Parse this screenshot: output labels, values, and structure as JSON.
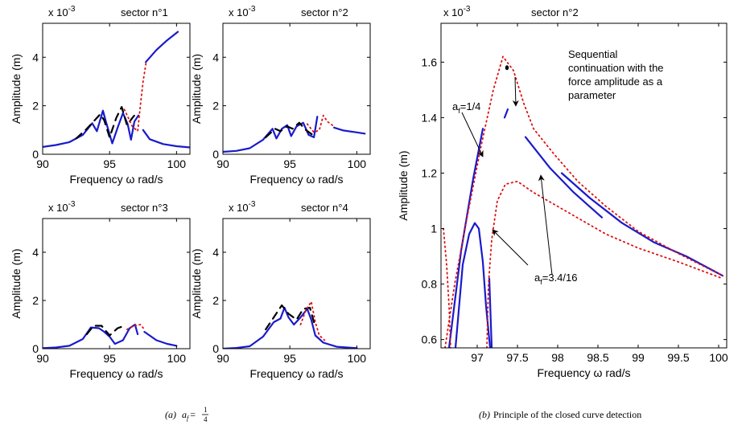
{
  "chart_data": [
    {
      "type": "line",
      "id": "p1",
      "title": "sector n°1",
      "xlabel": "Frequency ω rad/s",
      "ylabel": "Amplitude (m)",
      "exponent_label": "x 10",
      "exponent_power": "-3",
      "xlim": [
        90,
        101
      ],
      "ylim": [
        0,
        5.4
      ],
      "x_ticks": [
        90,
        95,
        100
      ],
      "y_ticks": [
        0,
        2,
        4
      ],
      "series": [
        {
          "style": "blue-solid",
          "points": [
            [
              90,
              0.3
            ],
            [
              91,
              0.38
            ],
            [
              92,
              0.5
            ],
            [
              93,
              0.8
            ],
            [
              93.7,
              1.28
            ],
            [
              94.05,
              0.95
            ],
            [
              94.5,
              1.8
            ],
            [
              94.75,
              1.3
            ],
            [
              95.2,
              0.45
            ],
            [
              95.6,
              1.1
            ],
            [
              96,
              1.7
            ],
            [
              96.35,
              1.25
            ],
            [
              96.6,
              0.6
            ],
            [
              96.85,
              1.35
            ],
            [
              97.15,
              1.6
            ]
          ]
        },
        {
          "style": "blue-solid",
          "points": [
            [
              97.7,
              3.8
            ],
            [
              98.5,
              4.3
            ],
            [
              99.3,
              4.7
            ],
            [
              100.1,
              5.05
            ]
          ]
        },
        {
          "style": "blue-solid",
          "points": [
            [
              97.5,
              1.0
            ],
            [
              98,
              0.62
            ],
            [
              99,
              0.42
            ],
            [
              100,
              0.33
            ],
            [
              101,
              0.28
            ]
          ]
        },
        {
          "style": "black-dash",
          "points": [
            [
              92.5,
              0.65
            ],
            [
              93.3,
              1.05
            ],
            [
              93.8,
              1.35
            ],
            [
              94.3,
              1.65
            ],
            [
              94.6,
              1.4
            ],
            [
              95.0,
              0.7
            ],
            [
              95.5,
              1.5
            ],
            [
              95.9,
              1.95
            ],
            [
              96.3,
              1.2
            ],
            [
              96.7,
              1.5
            ],
            [
              97.0,
              1.7
            ]
          ]
        },
        {
          "style": "red-dot",
          "points": [
            [
              96.1,
              1.85
            ],
            [
              96.7,
              1.15
            ],
            [
              97.1,
              0.95
            ],
            [
              97.3,
              2.0
            ],
            [
              97.5,
              3.0
            ],
            [
              97.75,
              3.85
            ]
          ]
        }
      ]
    },
    {
      "type": "line",
      "id": "p2",
      "title": "sector n°2",
      "xlabel": "Frequency ω rad/s",
      "ylabel": "Amplitude (m)",
      "exponent_label": "x 10",
      "exponent_power": "-3",
      "xlim": [
        90,
        101
      ],
      "ylim": [
        0,
        5.4
      ],
      "x_ticks": [
        90,
        95,
        100
      ],
      "y_ticks": [
        0,
        2,
        4
      ],
      "series": [
        {
          "style": "blue-solid",
          "points": [
            [
              90,
              0.1
            ],
            [
              91,
              0.14
            ],
            [
              92,
              0.25
            ],
            [
              93,
              0.6
            ],
            [
              93.7,
              1.05
            ],
            [
              94,
              0.65
            ],
            [
              94.4,
              1.05
            ],
            [
              94.8,
              1.2
            ],
            [
              95.1,
              0.75
            ],
            [
              95.5,
              1.15
            ],
            [
              96,
              1.3
            ],
            [
              96.4,
              0.8
            ],
            [
              96.8,
              0.7
            ],
            [
              97.05,
              1.55
            ]
          ]
        },
        {
          "style": "blue-solid",
          "points": [
            [
              98.3,
              1.1
            ],
            [
              99,
              0.98
            ],
            [
              100,
              0.9
            ],
            [
              100.6,
              0.85
            ]
          ]
        },
        {
          "style": "black-dash",
          "points": [
            [
              93.2,
              0.7
            ],
            [
              93.9,
              1.05
            ],
            [
              94.3,
              0.95
            ],
            [
              94.8,
              1.15
            ],
            [
              95.2,
              1.05
            ],
            [
              95.7,
              1.3
            ],
            [
              96.2,
              1.0
            ],
            [
              96.7,
              0.8
            ]
          ]
        },
        {
          "style": "red-dot",
          "points": [
            [
              96.3,
              1.25
            ],
            [
              96.8,
              0.9
            ],
            [
              97.2,
              1.0
            ],
            [
              97.5,
              1.6
            ],
            [
              97.8,
              1.35
            ],
            [
              98.3,
              1.15
            ]
          ]
        }
      ]
    },
    {
      "type": "line",
      "id": "p3",
      "title": "sector n°3",
      "xlabel": "Frequency ω rad/s",
      "ylabel": "Amplitude (m)",
      "exponent_label": "x 10",
      "exponent_power": "-3",
      "xlim": [
        90,
        101
      ],
      "ylim": [
        0,
        5.4
      ],
      "x_ticks": [
        90,
        95,
        100
      ],
      "y_ticks": [
        0,
        2,
        4
      ],
      "series": [
        {
          "style": "blue-solid",
          "points": [
            [
              90,
              0.02
            ],
            [
              91,
              0.05
            ],
            [
              92,
              0.12
            ],
            [
              93,
              0.4
            ],
            [
              93.6,
              0.88
            ],
            [
              94.2,
              0.85
            ],
            [
              94.6,
              0.7
            ],
            [
              95.0,
              0.5
            ],
            [
              95.4,
              0.2
            ],
            [
              96,
              0.35
            ],
            [
              96.5,
              0.85
            ],
            [
              96.9,
              1.0
            ],
            [
              97.1,
              0.6
            ]
          ]
        },
        {
          "style": "blue-solid",
          "points": [
            [
              97.6,
              0.7
            ],
            [
              98.5,
              0.35
            ],
            [
              99.3,
              0.2
            ],
            [
              100,
              0.12
            ]
          ]
        },
        {
          "style": "black-dash",
          "points": [
            [
              93.3,
              0.6
            ],
            [
              93.8,
              0.95
            ],
            [
              94.4,
              0.95
            ],
            [
              95.0,
              0.55
            ],
            [
              95.6,
              0.85
            ],
            [
              96.1,
              0.95
            ]
          ]
        },
        {
          "style": "red-dot",
          "points": [
            [
              96.3,
              0.8
            ],
            [
              96.8,
              0.95
            ],
            [
              97.3,
              1.0
            ],
            [
              97.6,
              0.8
            ]
          ]
        }
      ]
    },
    {
      "type": "line",
      "id": "p4",
      "title": "sector n°4",
      "xlabel": "Frequency ω rad/s",
      "ylabel": "Amplitude (m)",
      "exponent_label": "x 10",
      "exponent_power": "-3",
      "xlim": [
        90,
        101
      ],
      "ylim": [
        0,
        5.4
      ],
      "x_ticks": [
        90,
        95,
        100
      ],
      "y_ticks": [
        0,
        2,
        4
      ],
      "series": [
        {
          "style": "blue-solid",
          "points": [
            [
              90,
              0.0
            ],
            [
              91,
              0.03
            ],
            [
              92,
              0.1
            ],
            [
              93,
              0.5
            ],
            [
              93.8,
              1.1
            ],
            [
              94.3,
              1.25
            ],
            [
              94.6,
              1.7
            ],
            [
              94.9,
              1.3
            ],
            [
              95.3,
              1.0
            ],
            [
              95.8,
              1.3
            ],
            [
              96.3,
              1.65
            ],
            [
              96.6,
              1.2
            ],
            [
              96.9,
              0.55
            ],
            [
              97.5,
              0.25
            ],
            [
              98.5,
              0.08
            ],
            [
              100,
              0.02
            ]
          ]
        },
        {
          "style": "black-dash",
          "points": [
            [
              93.2,
              0.8
            ],
            [
              93.8,
              1.3
            ],
            [
              94.4,
              1.8
            ],
            [
              94.9,
              1.45
            ],
            [
              95.5,
              1.2
            ],
            [
              96.0,
              1.65
            ],
            [
              96.5,
              1.7
            ],
            [
              96.8,
              1.1
            ]
          ]
        },
        {
          "style": "red-dot",
          "points": [
            [
              95.8,
              1.0
            ],
            [
              96.2,
              1.6
            ],
            [
              96.6,
              1.95
            ],
            [
              96.9,
              1.1
            ],
            [
              97.2,
              0.55
            ],
            [
              97.6,
              0.35
            ]
          ]
        }
      ]
    },
    {
      "type": "line",
      "id": "p5",
      "title": "sector n°2",
      "xlabel": "Frequency ω rad/s",
      "ylabel": "Amplitude (m)",
      "exponent_label": "x 10",
      "exponent_power": "-3",
      "xlim": [
        96.55,
        100.1
      ],
      "ylim": [
        0.57,
        1.74
      ],
      "x_ticks": [
        97,
        97.5,
        98,
        98.5,
        99,
        99.5,
        100
      ],
      "x_tick_labels": [
        "97",
        "97.5",
        "98",
        "98.5",
        "99",
        "99.5",
        "100"
      ],
      "y_ticks": [
        0.6,
        0.8,
        1,
        1.2,
        1.4,
        1.6
      ],
      "y_tick_labels": [
        "0.6",
        "0.8",
        "1",
        "1.2",
        "1.4",
        "1.6"
      ],
      "series": [
        {
          "style": "blue-solid",
          "points": [
            [
              96.65,
              0.57
            ],
            [
              96.8,
              0.92
            ],
            [
              96.95,
              1.18
            ],
            [
              97.07,
              1.36
            ]
          ]
        },
        {
          "style": "blue-solid",
          "points": [
            [
              96.73,
              0.57
            ],
            [
              96.82,
              0.87
            ],
            [
              96.9,
              0.98
            ],
            [
              96.97,
              1.02
            ],
            [
              97.02,
              1.0
            ],
            [
              97.07,
              0.88
            ],
            [
              97.11,
              0.72
            ],
            [
              97.16,
              0.57
            ]
          ]
        },
        {
          "style": "blue-solid",
          "points": [
            [
              97.15,
              0.82
            ],
            [
              97.18,
              0.57
            ]
          ]
        },
        {
          "style": "blue-solid",
          "points": [
            [
              97.34,
              1.4
            ],
            [
              97.38,
              1.43
            ]
          ]
        },
        {
          "style": "blue-solid",
          "points": [
            [
              97.6,
              1.33
            ],
            [
              97.9,
              1.22
            ],
            [
              98.2,
              1.13
            ],
            [
              98.55,
              1.04
            ]
          ]
        },
        {
          "style": "blue-solid",
          "points": [
            [
              98.05,
              1.2
            ],
            [
              98.4,
              1.11
            ],
            [
              98.8,
              1.02
            ],
            [
              99.2,
              0.95
            ],
            [
              99.6,
              0.9
            ],
            [
              100.05,
              0.83
            ]
          ]
        },
        {
          "style": "red-dot",
          "points": [
            [
              96.58,
              1.0
            ],
            [
              96.62,
              0.87
            ],
            [
              96.65,
              0.72
            ],
            [
              96.67,
              0.57
            ]
          ]
        },
        {
          "style": "red-dot",
          "points": [
            [
              97.12,
              0.57
            ],
            [
              97.14,
              0.8
            ],
            [
              97.18,
              0.96
            ],
            [
              97.25,
              1.1
            ],
            [
              97.35,
              1.16
            ],
            [
              97.5,
              1.17
            ],
            [
              97.7,
              1.13
            ],
            [
              98.0,
              1.08
            ],
            [
              98.3,
              1.03
            ],
            [
              98.6,
              0.98
            ],
            [
              99.0,
              0.93
            ],
            [
              99.5,
              0.88
            ],
            [
              100.05,
              0.82
            ]
          ]
        },
        {
          "style": "red-dot",
          "points": [
            [
              96.6,
              0.57
            ],
            [
              96.72,
              0.8
            ],
            [
              96.88,
              1.05
            ],
            [
              97.05,
              1.3
            ],
            [
              97.2,
              1.5
            ],
            [
              97.32,
              1.62
            ],
            [
              97.45,
              1.57
            ],
            [
              97.58,
              1.45
            ],
            [
              97.7,
              1.36
            ],
            [
              97.95,
              1.27
            ],
            [
              98.25,
              1.17
            ],
            [
              98.6,
              1.08
            ],
            [
              99.0,
              0.99
            ],
            [
              99.5,
              0.91
            ],
            [
              100.05,
              0.83
            ]
          ]
        }
      ],
      "markers": [
        {
          "x": 97.37,
          "y": 1.58
        }
      ]
    }
  ],
  "annotations": {
    "sequential_text": [
      "Sequential",
      "continuation with the",
      "force amplitude as a",
      "parameter"
    ],
    "af_quarter_main": "a",
    "af_quarter_sub": "f",
    "af_quarter_value": "=1/4",
    "af_other_main": "a",
    "af_other_sub": "f",
    "af_other_value": "=3.4/16"
  },
  "captions": {
    "a_label": "(a)",
    "a_af": "a",
    "a_f_sub": "f",
    "a_equals": "=",
    "a_numerator": "1",
    "a_denominator": "4",
    "b_label": "(b)",
    "b_text": "Principle of the closed curve detection"
  },
  "colors": {
    "blue": "#1a1acc",
    "red": "#dd1111",
    "black": "#000000"
  }
}
